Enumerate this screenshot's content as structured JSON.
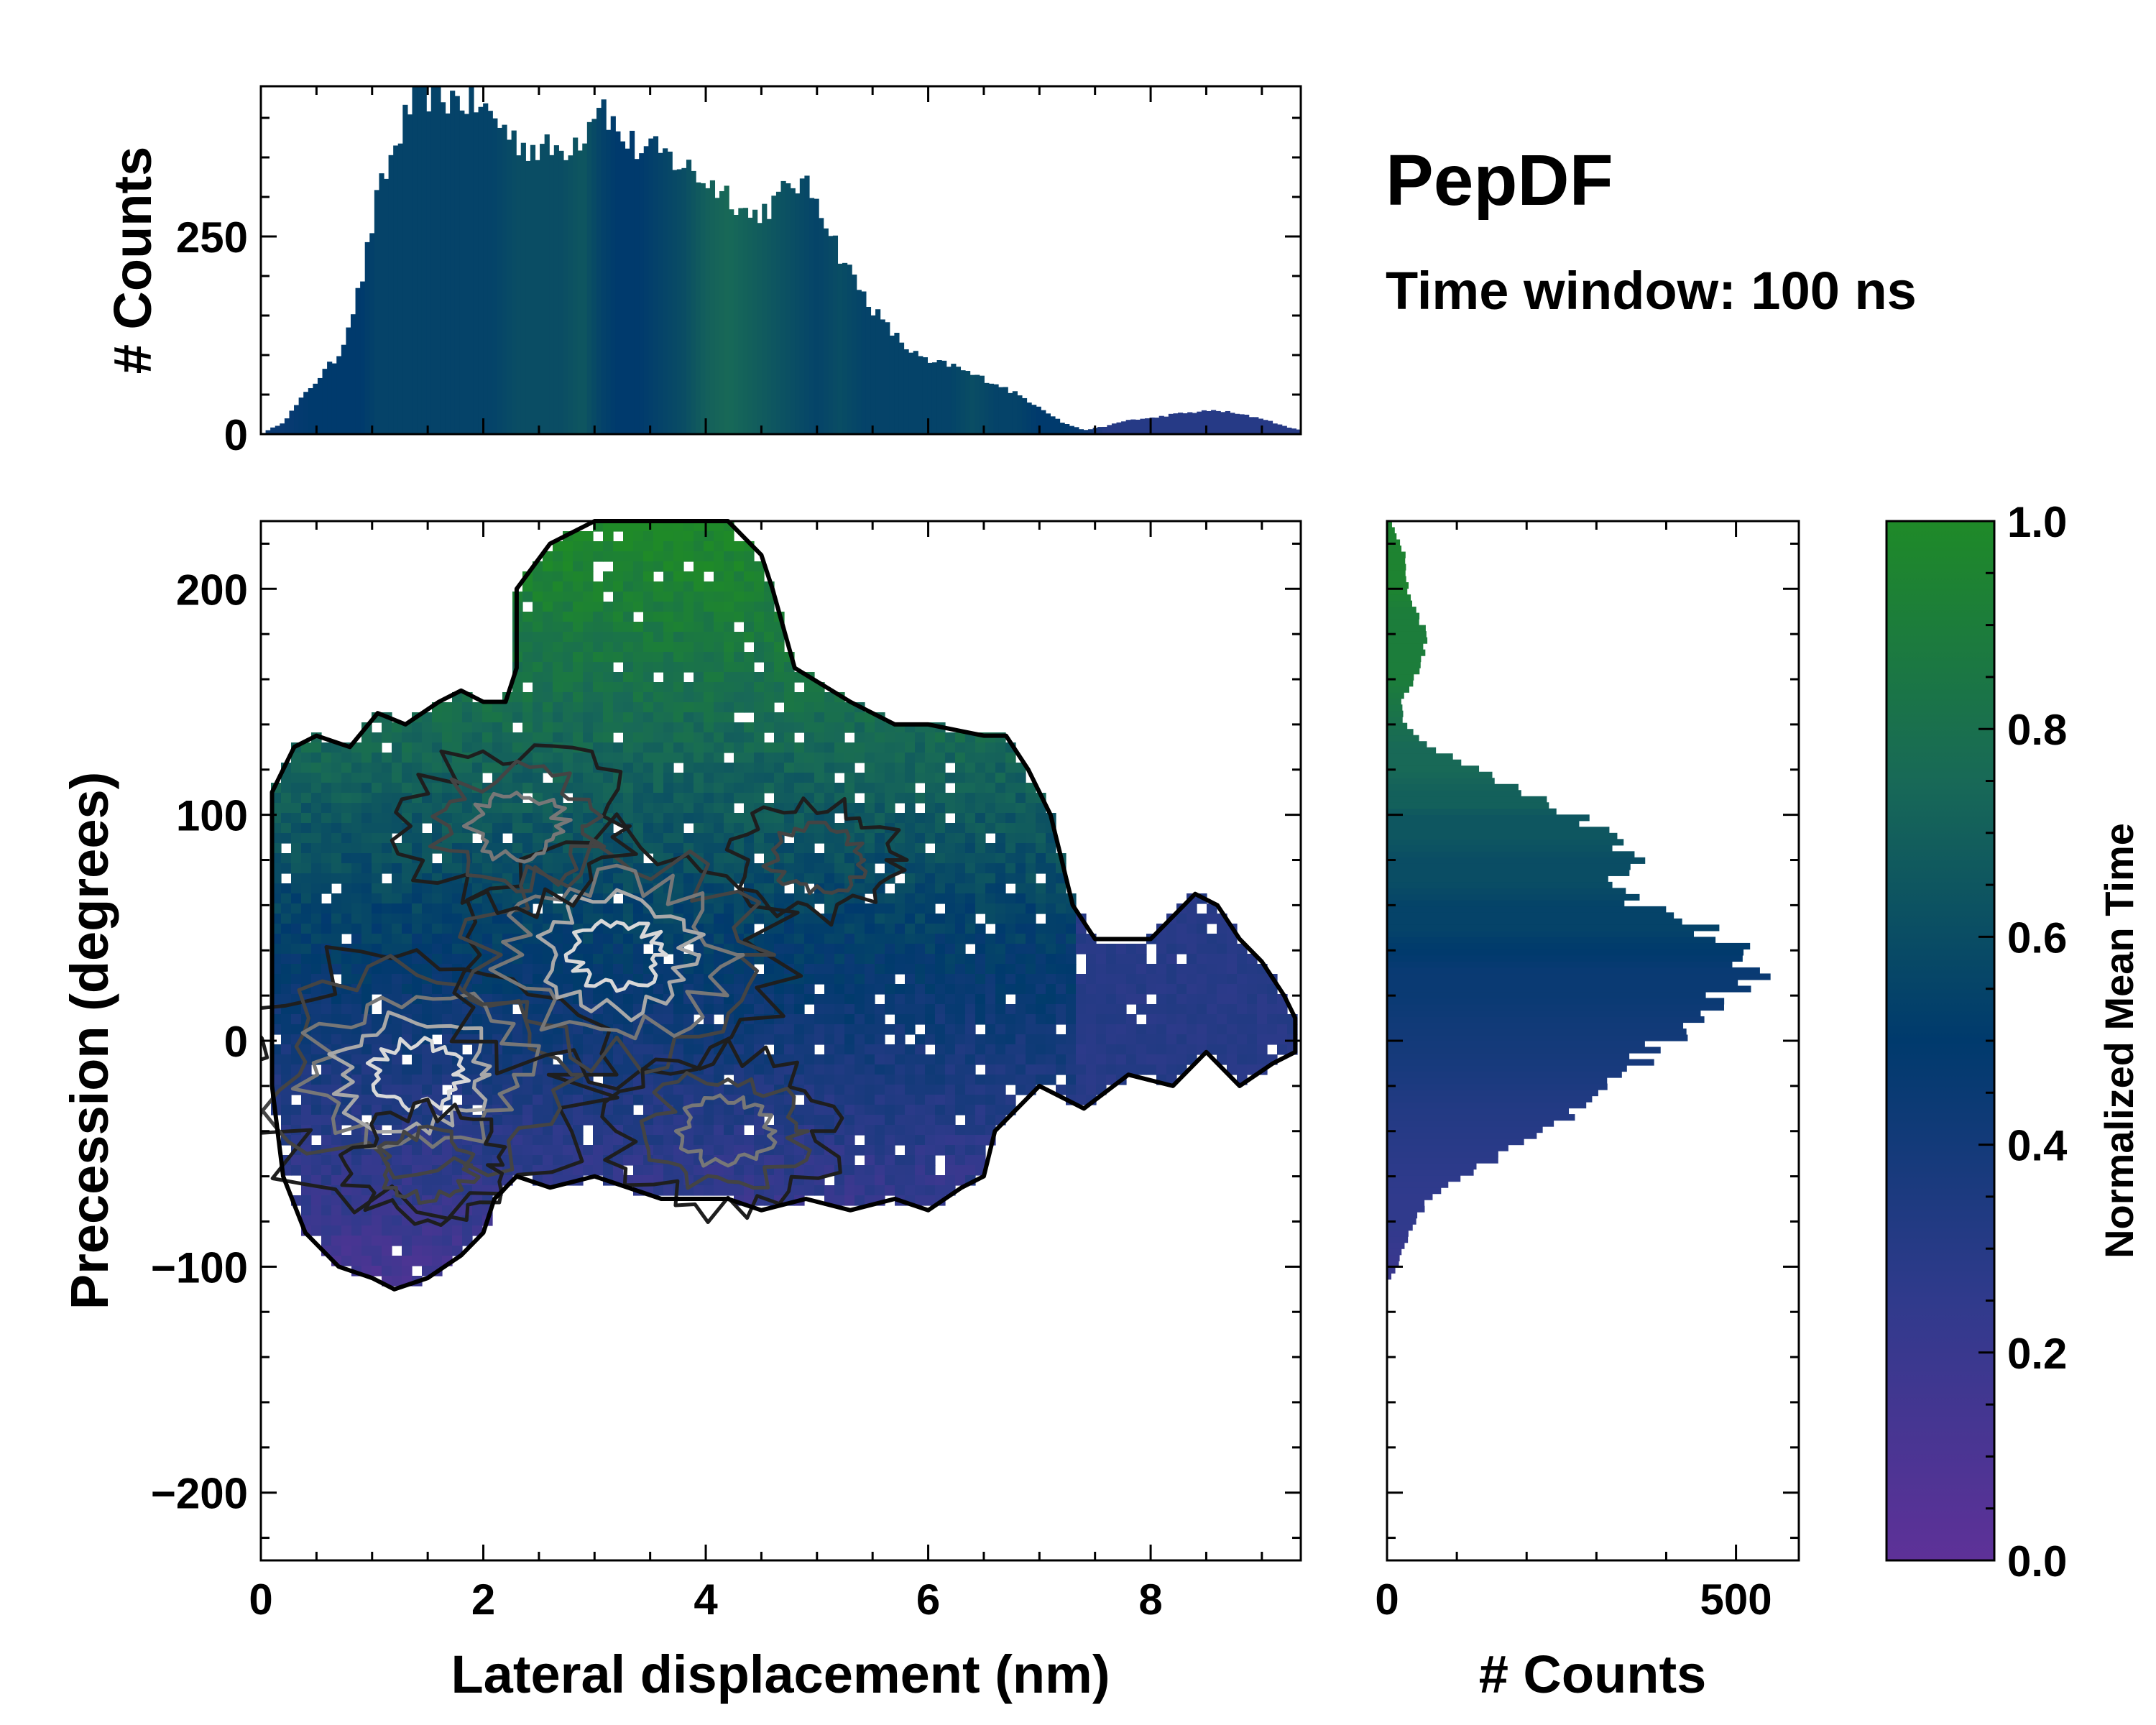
{
  "chart_data": [
    {
      "panel": "top-marginal",
      "type": "bar",
      "ylabel": "# Counts",
      "ylim": [
        0,
        440
      ],
      "xlim": [
        0,
        9.35
      ],
      "yticks": [
        0,
        250
      ],
      "ytick_labels": [
        "0",
        "250"
      ],
      "profile_x": [
        0,
        0.2,
        0.45,
        0.7,
        0.9,
        1.05,
        1.25,
        1.4,
        1.55,
        1.7,
        1.9,
        2.1,
        2.3,
        2.5,
        2.7,
        2.9,
        3.05,
        3.2,
        3.4,
        3.6,
        3.8,
        4.0,
        4.2,
        4.4,
        4.6,
        4.8,
        5.0,
        5.2,
        5.4,
        5.6,
        5.8,
        6.0,
        6.2,
        6.4,
        6.6,
        6.8,
        7.0,
        7.2,
        7.4,
        7.6,
        7.8,
        8.0,
        8.2,
        8.4,
        8.6,
        8.8,
        9.0,
        9.2,
        9.35
      ],
      "profile_y": [
        0,
        15,
        60,
        100,
        190,
        300,
        380,
        435,
        430,
        425,
        420,
        400,
        370,
        360,
        360,
        380,
        430,
        380,
        360,
        355,
        340,
        320,
        305,
        275,
        290,
        320,
        300,
        230,
        180,
        140,
        110,
        90,
        88,
        75,
        65,
        50,
        35,
        15,
        5,
        10,
        18,
        20,
        25,
        28,
        30,
        25,
        20,
        10,
        5
      ],
      "profile_t": [
        0.45,
        0.45,
        0.5,
        0.5,
        0.5,
        0.55,
        0.55,
        0.55,
        0.55,
        0.55,
        0.55,
        0.55,
        0.6,
        0.6,
        0.6,
        0.65,
        0.55,
        0.5,
        0.5,
        0.55,
        0.6,
        0.7,
        0.75,
        0.7,
        0.65,
        0.6,
        0.55,
        0.6,
        0.55,
        0.55,
        0.55,
        0.55,
        0.55,
        0.6,
        0.55,
        0.55,
        0.5,
        0.5,
        0.45,
        0.3,
        0.3,
        0.3,
        0.3,
        0.3,
        0.3,
        0.3,
        0.3,
        0.3,
        0.3
      ]
    },
    {
      "panel": "joint-heatmap",
      "type": "heatmap",
      "xlabel": "Lateral displacement (nm)",
      "ylabel": "Precession (degrees)",
      "xlim": [
        0,
        9.35
      ],
      "ylim": [
        -230,
        230
      ],
      "xticks": [
        0,
        2,
        4,
        6,
        8
      ],
      "xtick_labels": [
        "0",
        "2",
        "4",
        "6",
        "8"
      ],
      "yticks": [
        -200,
        -100,
        0,
        100,
        200
      ],
      "ytick_labels": [
        "−200",
        "−100",
        "0",
        "100",
        "200"
      ],
      "color_by": "Normalized Mean Time",
      "density_peaks": [
        {
          "x": 1.4,
          "y": -15,
          "level": 1.0
        },
        {
          "x": 3.2,
          "y": 38,
          "level": 0.95
        },
        {
          "x": 2.3,
          "y": 95,
          "level": 0.6
        },
        {
          "x": 5.0,
          "y": 80,
          "level": 0.45
        },
        {
          "x": 4.2,
          "y": -40,
          "level": 0.5
        },
        {
          "x": 1.5,
          "y": -55,
          "level": 0.4
        }
      ],
      "support_outline": {
        "x": [
          0.1,
          0.3,
          0.5,
          0.8,
          1.05,
          1.3,
          1.6,
          1.8,
          2.0,
          2.2,
          2.3,
          2.3,
          2.6,
          3.0,
          3.4,
          3.8,
          4.2,
          4.5,
          4.6,
          4.8,
          5.3,
          5.7,
          6.0,
          6.5,
          6.7,
          6.9,
          7.1,
          7.2,
          7.3,
          7.5,
          8.0,
          8.4,
          8.6,
          8.8,
          9.0,
          9.2,
          9.3,
          9.3,
          9.1,
          8.8,
          8.5,
          8.2,
          7.8,
          7.4,
          7.0,
          6.6,
          6.5,
          6.3,
          6.0,
          5.7,
          5.3,
          4.9,
          4.5,
          4.2,
          3.9,
          3.6,
          3.3,
          3.0,
          2.6,
          2.3,
          2.1,
          2.0,
          1.8,
          1.5,
          1.2,
          1.0,
          0.7,
          0.4,
          0.2,
          0.1,
          0.1
        ],
        "y": [
          110,
          130,
          135,
          130,
          145,
          140,
          150,
          155,
          150,
          150,
          165,
          200,
          220,
          230,
          230,
          230,
          230,
          215,
          200,
          165,
          150,
          140,
          140,
          135,
          135,
          120,
          100,
          80,
          60,
          45,
          45,
          65,
          60,
          45,
          35,
          20,
          10,
          -5,
          -10,
          -20,
          -5,
          -20,
          -15,
          -30,
          -20,
          -40,
          -60,
          -65,
          -75,
          -70,
          -75,
          -70,
          -75,
          -70,
          -70,
          -70,
          -65,
          -60,
          -65,
          -60,
          -70,
          -85,
          -95,
          -105,
          -110,
          -105,
          -100,
          -85,
          -60,
          -20,
          110
        ]
      }
    },
    {
      "panel": "right-marginal",
      "type": "bar",
      "orientation": "horizontal",
      "xlabel": "# Counts",
      "xlim": [
        0,
        590
      ],
      "ylim": [
        -230,
        230
      ],
      "xticks": [
        0,
        500
      ],
      "xtick_labels": [
        "0",
        "500"
      ],
      "profile_y": [
        230,
        215,
        200,
        190,
        180,
        170,
        160,
        150,
        140,
        130,
        120,
        110,
        104,
        100,
        90,
        80,
        70,
        60,
        50,
        40,
        30,
        20,
        10,
        0,
        -10,
        -20,
        -30,
        -40,
        -50,
        -60,
        -70,
        -80,
        -90,
        -100,
        -105
      ],
      "profile_x": [
        5,
        25,
        30,
        40,
        60,
        50,
        40,
        20,
        25,
        60,
        130,
        190,
        250,
        265,
        320,
        355,
        310,
        370,
        460,
        500,
        520,
        490,
        430,
        400,
        360,
        320,
        275,
        225,
        170,
        110,
        60,
        40,
        25,
        15,
        5
      ],
      "profile_t": [
        0.95,
        0.95,
        0.95,
        0.9,
        0.9,
        0.9,
        0.9,
        0.85,
        0.8,
        0.75,
        0.75,
        0.7,
        0.7,
        0.65,
        0.65,
        0.6,
        0.6,
        0.55,
        0.55,
        0.5,
        0.45,
        0.45,
        0.42,
        0.4,
        0.38,
        0.35,
        0.32,
        0.3,
        0.28,
        0.26,
        0.25,
        0.25,
        0.22,
        0.2,
        0.2
      ]
    },
    {
      "panel": "colorbar",
      "type": "colorbar",
      "label": "Normalized Mean Time",
      "range": [
        0.0,
        1.0
      ],
      "ticks": [
        0.0,
        0.2,
        0.4,
        0.6,
        0.8,
        1.0
      ],
      "tick_labels": [
        "0.0",
        "0.2",
        "0.4",
        "0.6",
        "0.8",
        "1.0"
      ],
      "colormap_stops": [
        {
          "t": 0.0,
          "color": "#5e3198"
        },
        {
          "t": 0.25,
          "color": "#303a8c"
        },
        {
          "t": 0.5,
          "color": "#003a6d"
        },
        {
          "t": 0.75,
          "color": "#186957"
        },
        {
          "t": 1.0,
          "color": "#1f8a28"
        }
      ]
    }
  ],
  "annotations": {
    "title": "PepDF",
    "subtitle": "Time window: 100 ns"
  },
  "colors": {
    "outline": "#000000",
    "contour_dark": "#222222",
    "contour_mid": "#666666",
    "contour_light": "#aaaaaa"
  }
}
